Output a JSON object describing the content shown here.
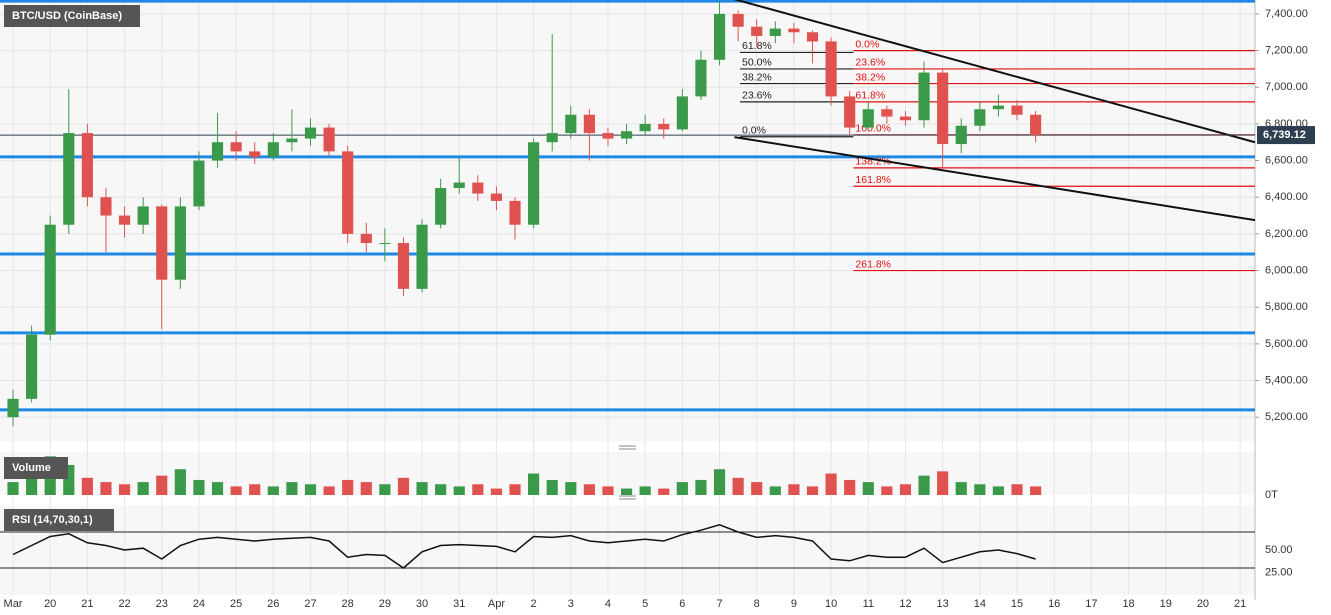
{
  "chart_data": {
    "type": "candlestick",
    "title": "BTC/USD (CoinBase)",
    "x": [
      0,
      0.5,
      1,
      1.5,
      2,
      2.5,
      3,
      3.5,
      4,
      4.5,
      5,
      5.5,
      6,
      6.5,
      7,
      7.5,
      8,
      8.5,
      9,
      9.5,
      10,
      10.5,
      11,
      11.5,
      12,
      12.5,
      13,
      13.5,
      14,
      14.5,
      15,
      15.5,
      16,
      16.5,
      17,
      17.5,
      18,
      18.5,
      19,
      19.5,
      20,
      20.5,
      21,
      21.5,
      22,
      22.5,
      23,
      23.5,
      24,
      24.5,
      25,
      25.5,
      26,
      26.5,
      27,
      27.5
    ],
    "open": [
      5200,
      5300,
      5650,
      6250,
      6750,
      6400,
      6300,
      6250,
      6350,
      5950,
      6350,
      6600,
      6700,
      6650,
      6620,
      6700,
      6720,
      6780,
      6650,
      6200,
      6150,
      6150,
      5900,
      6250,
      6450,
      6480,
      6420,
      6380,
      6250,
      6700,
      6750,
      6850,
      6750,
      6720,
      6760,
      6800,
      6770,
      6950,
      7150,
      7400,
      7330,
      7280,
      7320,
      7300,
      7250,
      6950,
      6780,
      6880,
      6840,
      6820,
      7080,
      6690,
      6790,
      6880,
      6900,
      6850
    ],
    "high": [
      5350,
      5700,
      6300,
      6990,
      6800,
      6450,
      6350,
      6400,
      6360,
      6400,
      6650,
      6860,
      6760,
      6700,
      6750,
      6880,
      6830,
      6800,
      6680,
      6260,
      6230,
      6180,
      6280,
      6500,
      6620,
      6520,
      6460,
      6400,
      6720,
      7290,
      6900,
      6880,
      6780,
      6800,
      6850,
      6830,
      6990,
      7200,
      7470,
      7420,
      7370,
      7360,
      7350,
      7310,
      7270,
      6980,
      6920,
      6900,
      6870,
      7140,
      7100,
      6830,
      6920,
      6960,
      6930,
      6870
    ],
    "low": [
      5150,
      5280,
      5620,
      6200,
      6350,
      6100,
      6180,
      6200,
      5680,
      5900,
      6330,
      6560,
      6600,
      6580,
      6600,
      6650,
      6680,
      6620,
      6150,
      6100,
      6050,
      5860,
      5880,
      6230,
      6420,
      6380,
      6330,
      6170,
      6230,
      6650,
      6720,
      6600,
      6680,
      6690,
      6740,
      6720,
      6760,
      6930,
      7120,
      7250,
      7220,
      7240,
      7240,
      7130,
      6900,
      6740,
      6760,
      6800,
      6790,
      6780,
      6560,
      6640,
      6760,
      6840,
      6820,
      6700
    ],
    "close": [
      5300,
      5650,
      6250,
      6750,
      6400,
      6300,
      6250,
      6350,
      5950,
      6350,
      6600,
      6700,
      6650,
      6620,
      6700,
      6720,
      6780,
      6650,
      6200,
      6150,
      6150,
      5900,
      6250,
      6450,
      6480,
      6420,
      6380,
      6250,
      6700,
      6750,
      6850,
      6750,
      6720,
      6760,
      6800,
      6770,
      6950,
      7150,
      7400,
      7330,
      7280,
      7320,
      7300,
      7250,
      6950,
      6780,
      6880,
      6840,
      6820,
      7080,
      6690,
      6790,
      6880,
      6900,
      6850,
      6739.12
    ],
    "up_color": "#3a9a4a",
    "down_color": "#e0524f",
    "last_price": {
      "value": 6739.12,
      "label": "6,739.12"
    },
    "xlim": [
      -0.35,
      33.4
    ],
    "xticks": [
      {
        "value": 0,
        "label": "Mar"
      },
      {
        "value": 1,
        "label": "20"
      },
      {
        "value": 2,
        "label": "21"
      },
      {
        "value": 3,
        "label": "22"
      },
      {
        "value": 4,
        "label": "23"
      },
      {
        "value": 5,
        "label": "24"
      },
      {
        "value": 6,
        "label": "25"
      },
      {
        "value": 7,
        "label": "26"
      },
      {
        "value": 8,
        "label": "27"
      },
      {
        "value": 9,
        "label": "28"
      },
      {
        "value": 10,
        "label": "29"
      },
      {
        "value": 11,
        "label": "30"
      },
      {
        "value": 12,
        "label": "31"
      },
      {
        "value": 13,
        "label": "Apr"
      },
      {
        "value": 14,
        "label": "2"
      },
      {
        "value": 15,
        "label": "3"
      },
      {
        "value": 16,
        "label": "4"
      },
      {
        "value": 17,
        "label": "5"
      },
      {
        "value": 18,
        "label": "6"
      },
      {
        "value": 19,
        "label": "7"
      },
      {
        "value": 20,
        "label": "8"
      },
      {
        "value": 21,
        "label": "9"
      },
      {
        "value": 22,
        "label": "10"
      },
      {
        "value": 23,
        "label": "11"
      },
      {
        "value": 24,
        "label": "12"
      },
      {
        "value": 25,
        "label": "13"
      },
      {
        "value": 26,
        "label": "14"
      },
      {
        "value": 27,
        "label": "15"
      },
      {
        "value": 28,
        "label": "16"
      },
      {
        "value": 29,
        "label": "17"
      },
      {
        "value": 30,
        "label": "18"
      },
      {
        "value": 31,
        "label": "19"
      },
      {
        "value": 32,
        "label": "20"
      },
      {
        "value": 33,
        "label": "21"
      }
    ],
    "ylim": [
      5070,
      7476
    ],
    "yticks": [
      {
        "value": 5200,
        "label": "5,200.00"
      },
      {
        "value": 5400,
        "label": "5,400.00"
      },
      {
        "value": 5600,
        "label": "5,600.00"
      },
      {
        "value": 5800,
        "label": "5,800.00"
      },
      {
        "value": 6000,
        "label": "6,000.00"
      },
      {
        "value": 6200,
        "label": "6,200.00"
      },
      {
        "value": 6400,
        "label": "6,400.00"
      },
      {
        "value": 6600,
        "label": "6,600.00"
      },
      {
        "value": 6800,
        "label": "6,800.00"
      },
      {
        "value": 7000,
        "label": "7,000.00"
      },
      {
        "value": 7200,
        "label": "7,200.00"
      },
      {
        "value": 7400,
        "label": "7,400.00"
      }
    ],
    "grid": true,
    "support_lines": {
      "color": "#1e88e5",
      "values": [
        7470,
        6620,
        6090,
        5660,
        5240
      ]
    },
    "trend_lines": [
      {
        "x": [
          19.4,
          33.4
        ],
        "y": [
          7480,
          6700
        ]
      },
      {
        "x": [
          19.4,
          33.4
        ],
        "y": [
          6728,
          6275
        ]
      }
    ],
    "fib_sets": [
      {
        "color": "#222222",
        "x_range": [
          19.55,
          22.6
        ],
        "levels": [
          {
            "value": 6730,
            "label": "0.0%"
          },
          {
            "value": 6920,
            "label": "23.6%"
          },
          {
            "value": 7020,
            "label": "38.2%"
          },
          {
            "value": 7100,
            "label": "50.0%"
          },
          {
            "value": 7190,
            "label": "61.8%"
          }
        ]
      },
      {
        "color": "#e01010",
        "x_range": [
          22.6,
          33.4
        ],
        "levels": [
          {
            "value": 7200,
            "label": "0.0%"
          },
          {
            "value": 7100,
            "label": "23.6%"
          },
          {
            "value": 7020,
            "label": "38.2%"
          },
          {
            "value": 6920,
            "label": "61.8%"
          },
          {
            "value": 6740,
            "label": "100.0%"
          },
          {
            "value": 6560,
            "label": "138.2%"
          },
          {
            "value": 6460,
            "label": "161.8%"
          },
          {
            "value": 6000,
            "label": "261.8%"
          }
        ]
      }
    ],
    "volume": {
      "title": "Volume",
      "values": [
        30,
        60,
        90,
        70,
        40,
        30,
        25,
        30,
        45,
        60,
        35,
        30,
        20,
        25,
        20,
        30,
        25,
        20,
        35,
        30,
        25,
        40,
        30,
        25,
        20,
        25,
        15,
        25,
        50,
        35,
        30,
        25,
        20,
        15,
        20,
        15,
        30,
        35,
        60,
        40,
        30,
        20,
        25,
        20,
        50,
        35,
        30,
        20,
        25,
        45,
        55,
        30,
        25,
        20,
        25,
        20
      ],
      "ylim": [
        0,
        100
      ],
      "yticks": [
        {
          "value": 0,
          "label": "0T"
        }
      ]
    },
    "rsi": {
      "title": "RSI (14,70,30,1)",
      "values": [
        45,
        55,
        65,
        68,
        58,
        55,
        50,
        52,
        40,
        55,
        62,
        64,
        62,
        60,
        62,
        63,
        64,
        60,
        42,
        45,
        44,
        30,
        48,
        55,
        56,
        55,
        54,
        48,
        65,
        64,
        66,
        60,
        58,
        60,
        62,
        60,
        67,
        72,
        78,
        70,
        64,
        66,
        64,
        60,
        40,
        38,
        44,
        42,
        42,
        52,
        36,
        42,
        48,
        50,
        46,
        40
      ],
      "ylim": [
        0,
        100
      ],
      "levels": [
        70,
        30
      ],
      "yticks": [
        {
          "value": 50,
          "label": "50.00"
        },
        {
          "value": 25,
          "label": "25.00"
        }
      ]
    }
  }
}
